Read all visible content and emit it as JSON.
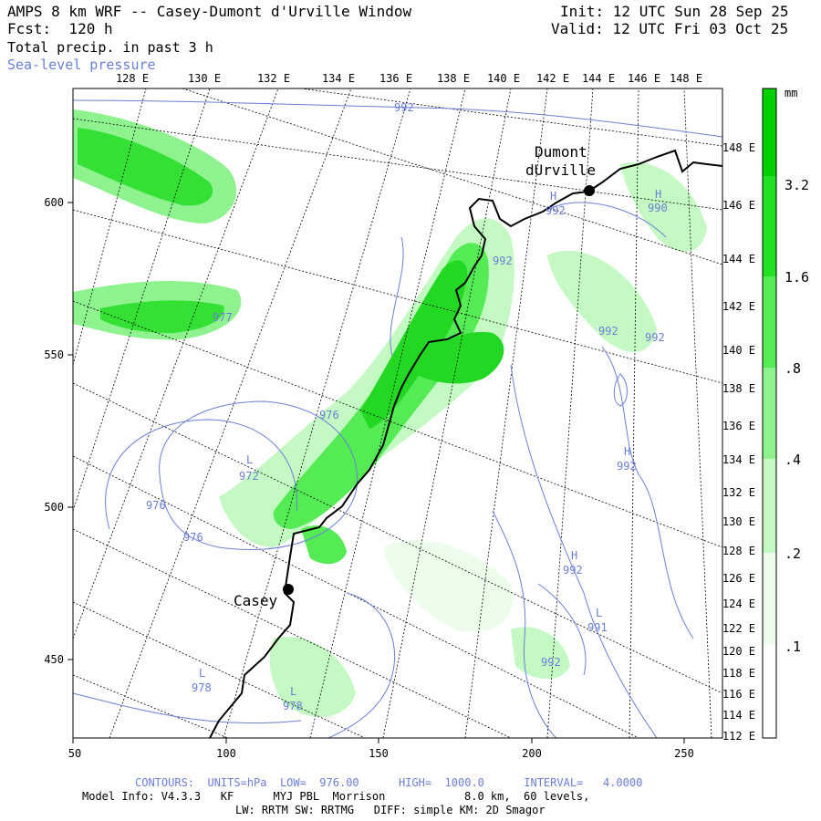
{
  "header": {
    "title": "AMPS 8 km WRF -- Casey-Dumont d'Urville Window",
    "forecast": "Fcst:  120 h",
    "field": "Total precip. in past 3 h",
    "overlay": "Sea-level pressure",
    "init": "Init: 12 UTC Sun 28 Sep 25",
    "valid": "Valid: 12 UTC Fri 03 Oct 25"
  },
  "axes": {
    "top_ticks": [
      "128 E",
      "130 E",
      "132 E",
      "134 E",
      "136 E",
      "138 E",
      "140 E",
      "142 E",
      "144 E",
      "146 E",
      "148 E"
    ],
    "right_ticks": [
      "148 E",
      "146 E",
      "144 E",
      "142 E",
      "140 E",
      "138 E",
      "136 E",
      "134 E",
      "132 E",
      "130 E",
      "128 E",
      "126 E",
      "124 E",
      "122 E",
      "120 E",
      "118 E",
      "116 E",
      "114 E",
      "112 E"
    ],
    "bottom_ticks": [
      "50",
      "100",
      "150",
      "200",
      "250"
    ],
    "left_ticks": [
      "600",
      "550",
      "500",
      "450"
    ]
  },
  "colorbar": {
    "unit": "mm",
    "labels": [
      "3.2",
      "1.6",
      ".8",
      ".4",
      ".2",
      ".1"
    ],
    "colors": [
      "#00d200",
      "#22e022",
      "#55eb55",
      "#8ef38e",
      "#c4f9c4",
      "#ecfdec"
    ]
  },
  "places": [
    {
      "name": "Casey"
    },
    {
      "name": "Dumont"
    },
    {
      "name": "dUrville"
    }
  ],
  "contour_labels": [
    "992",
    "990",
    "992",
    "992",
    "992",
    "977",
    "976",
    "972",
    "976",
    "976",
    "992",
    "992",
    "992",
    "991",
    "992",
    "978",
    "978",
    "H",
    "H",
    "H",
    "H",
    "L",
    "L",
    "L",
    "L"
  ],
  "footer": {
    "contours": "CONTOURS:  UNITS=hPa  LOW=  976.00      HIGH=  1000.0      INTERVAL=   4.0000",
    "model": "Model Info: V4.3.3   KF      MYJ PBL  Morrison            8.0 km,  60 levels,",
    "physics": "LW: RRTM SW: RRTMG   DIFF: simple KM: 2D Smagor"
  }
}
